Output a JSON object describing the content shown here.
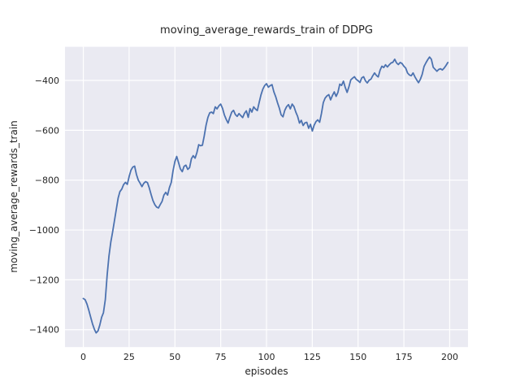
{
  "figure": {
    "title": "moving_average_rewards_train of DDPG"
  },
  "chart_data": {
    "type": "line",
    "title": "moving_average_rewards_train of DDPG",
    "xlabel": "episodes",
    "ylabel": "moving_average_rewards_train",
    "legend": "none",
    "grid": true,
    "xlim": [
      -10,
      210
    ],
    "ylim": [
      -1470,
      -265
    ],
    "x_ticks": [
      0,
      25,
      50,
      75,
      100,
      125,
      150,
      175,
      200
    ],
    "y_ticks": [
      -400,
      -600,
      -800,
      -1000,
      -1200,
      -1400
    ],
    "x_tick_labels": [
      "0",
      "25",
      "50",
      "75",
      "100",
      "125",
      "150",
      "175",
      "200"
    ],
    "y_tick_labels": [
      "−400",
      "−600",
      "−800",
      "−1000",
      "−1200",
      "−1400"
    ],
    "plot_bg": "#eaeaf2",
    "grid_color": "#ffffff",
    "line_color": "#4c72b0",
    "text_color": "#262626",
    "series": [
      {
        "name": "moving_average_rewards_train",
        "x_start": 0,
        "x_step": 1,
        "values": [
          -1275,
          -1280,
          -1298,
          -1322,
          -1350,
          -1376,
          -1398,
          -1413,
          -1405,
          -1382,
          -1350,
          -1332,
          -1280,
          -1180,
          -1105,
          -1048,
          -1008,
          -962,
          -918,
          -872,
          -846,
          -836,
          -818,
          -809,
          -817,
          -786,
          -760,
          -748,
          -744,
          -777,
          -800,
          -812,
          -826,
          -813,
          -806,
          -810,
          -831,
          -858,
          -882,
          -898,
          -908,
          -912,
          -898,
          -885,
          -860,
          -849,
          -860,
          -830,
          -809,
          -762,
          -725,
          -705,
          -730,
          -755,
          -766,
          -745,
          -740,
          -757,
          -750,
          -714,
          -702,
          -712,
          -690,
          -658,
          -662,
          -660,
          -624,
          -580,
          -548,
          -530,
          -527,
          -533,
          -506,
          -514,
          -502,
          -495,
          -512,
          -538,
          -556,
          -571,
          -548,
          -527,
          -520,
          -537,
          -544,
          -533,
          -541,
          -549,
          -532,
          -522,
          -548,
          -513,
          -527,
          -506,
          -515,
          -521,
          -488,
          -458,
          -435,
          -421,
          -413,
          -427,
          -421,
          -417,
          -445,
          -465,
          -489,
          -511,
          -538,
          -546,
          -520,
          -505,
          -497,
          -514,
          -495,
          -505,
          -527,
          -544,
          -571,
          -560,
          -581,
          -570,
          -568,
          -592,
          -576,
          -603,
          -580,
          -565,
          -558,
          -568,
          -533,
          -489,
          -471,
          -462,
          -457,
          -478,
          -460,
          -446,
          -464,
          -448,
          -415,
          -420,
          -403,
          -428,
          -448,
          -425,
          -398,
          -391,
          -385,
          -396,
          -401,
          -408,
          -390,
          -385,
          -401,
          -410,
          -399,
          -395,
          -381,
          -370,
          -380,
          -386,
          -359,
          -343,
          -348,
          -337,
          -346,
          -337,
          -330,
          -327,
          -315,
          -330,
          -336,
          -328,
          -332,
          -343,
          -350,
          -370,
          -378,
          -381,
          -370,
          -385,
          -398,
          -409,
          -395,
          -376,
          -344,
          -330,
          -317,
          -306,
          -315,
          -347,
          -355,
          -363,
          -356,
          -353,
          -358,
          -350,
          -340,
          -328
        ]
      }
    ]
  }
}
